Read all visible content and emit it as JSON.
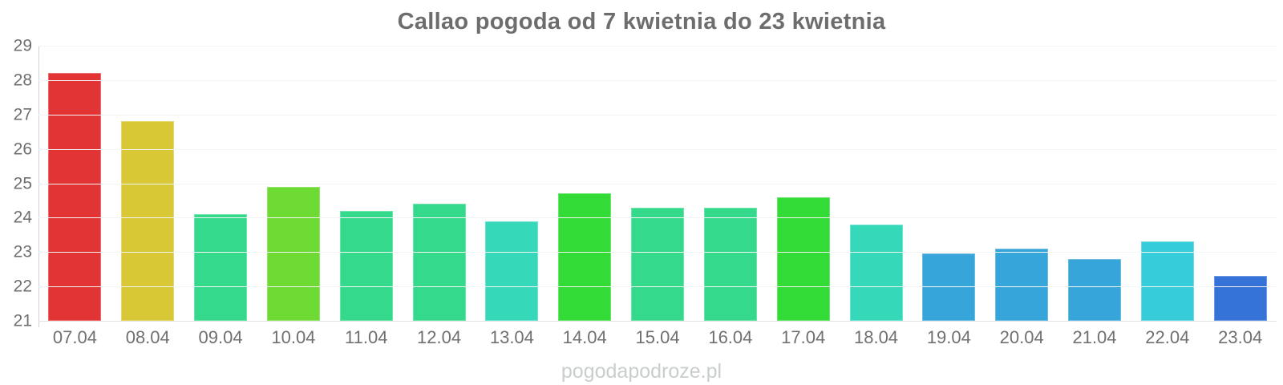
{
  "title": {
    "text": "Callao pogoda od 7 kwietnia do 23 kwietnia",
    "color": "#6d6d6d"
  },
  "watermark": {
    "text": "pogodapodroze.pl",
    "color": "#c9cdcd"
  },
  "chart_data": {
    "type": "bar",
    "title": "Callao pogoda od 7 kwietnia do 23 kwietnia",
    "categories": [
      "07.04",
      "08.04",
      "09.04",
      "10.04",
      "11.04",
      "12.04",
      "13.04",
      "14.04",
      "15.04",
      "16.04",
      "17.04",
      "18.04",
      "19.04",
      "20.04",
      "21.04",
      "22.04",
      "23.04"
    ],
    "values": [
      28.2,
      26.8,
      24.1,
      24.9,
      24.2,
      24.4,
      23.9,
      24.7,
      24.3,
      24.3,
      24.6,
      23.8,
      22.95,
      23.1,
      22.8,
      23.3,
      22.3
    ],
    "bar_colors": [
      "#e23434",
      "#d9c836",
      "#34d98b",
      "#6ddb34",
      "#34d98b",
      "#34d98b",
      "#36d8ba",
      "#33db36",
      "#34d98b",
      "#34d98b",
      "#33db36",
      "#36d8ba",
      "#36a6da",
      "#36a6da",
      "#36a6da",
      "#36ccd9",
      "#3673d8"
    ],
    "ylim": [
      21,
      29
    ],
    "yticks": [
      29,
      28,
      27,
      26,
      25,
      24,
      23,
      22,
      21
    ],
    "xlabel": "",
    "ylabel": "",
    "legend": "none",
    "grid": "horizontal"
  }
}
